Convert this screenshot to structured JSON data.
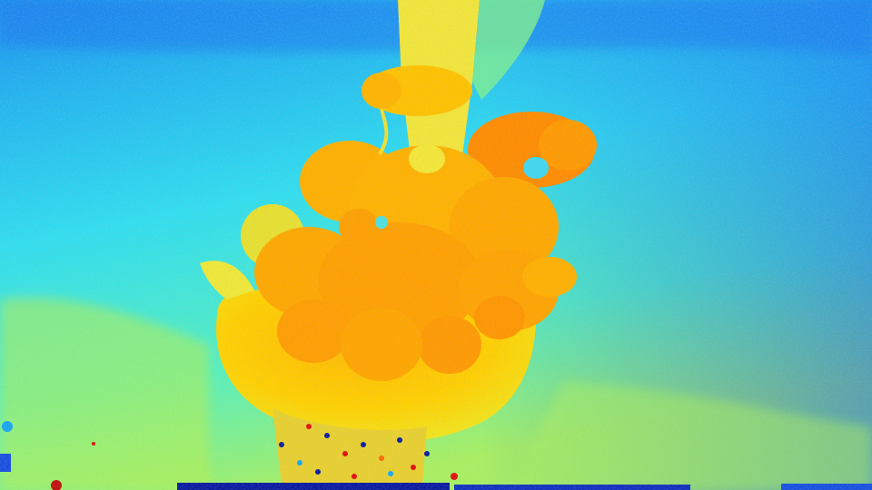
{
  "image": {
    "kind": "depth-map",
    "colormap": "jet",
    "subject": "flower-vase",
    "palette": {
      "far_blue": "#1560f0",
      "mid_blue": "#1aa6f2",
      "cyan": "#2fe0ee",
      "teal": "#4ff0c0",
      "green": "#9ef060",
      "yellow": "#f4ec18",
      "amber": "#ffc000",
      "orange": "#ff9a00",
      "deep_orange": "#ff6a00",
      "red": "#e01010",
      "dark_blue": "#0a1aa0"
    }
  }
}
